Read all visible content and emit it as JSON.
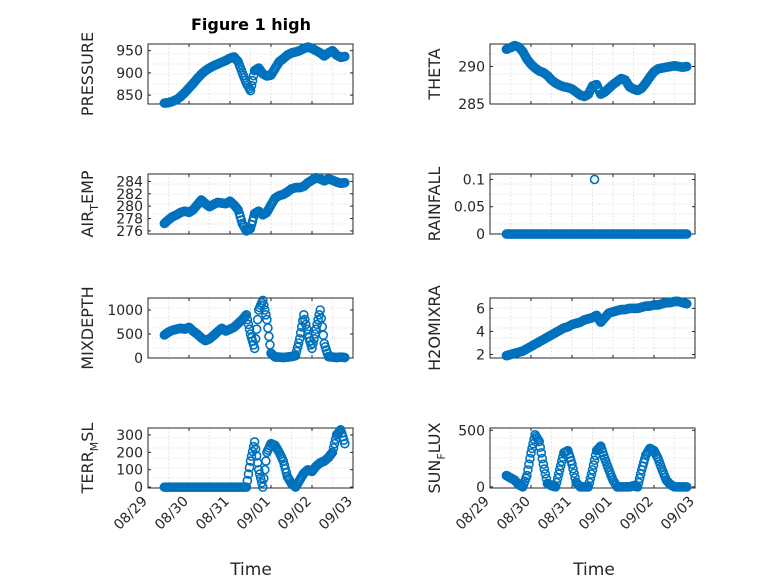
{
  "figure": {
    "title": "Figure 1 high"
  },
  "colors": {
    "marker": "#0072BD",
    "axis": "#262626",
    "grid": "#d9d9d9"
  },
  "x_ticks": [
    "08/29",
    "08/30",
    "08/31",
    "09/01",
    "09/02",
    "09/03"
  ],
  "x_label": "Time",
  "chart_data": [
    {
      "type": "scatter",
      "ylabel": "PRESSURE",
      "title": "Figure 1 high",
      "ylim": [
        830,
        965
      ],
      "yticks": [
        850,
        900,
        950
      ],
      "ytick_labels": [
        "850",
        "900",
        "950"
      ],
      "xlim": [
        0,
        5
      ],
      "xtick_labels": [
        "08/29",
        "08/30",
        "08/31",
        "09/01",
        "09/02",
        "09/03"
      ],
      "grid": true,
      "x": [
        0.4,
        0.5,
        0.6,
        0.7,
        0.8,
        0.9,
        1.0,
        1.1,
        1.2,
        1.3,
        1.4,
        1.5,
        1.6,
        1.7,
        1.8,
        1.9,
        2.0,
        2.1,
        2.2,
        2.3,
        2.4,
        2.5,
        2.6,
        2.7,
        2.8,
        2.9,
        3.0,
        3.1,
        3.2,
        3.3,
        3.4,
        3.5,
        3.6,
        3.7,
        3.8,
        3.9,
        4.0,
        4.1,
        4.2,
        4.3,
        4.4,
        4.5,
        4.6,
        4.7,
        4.8
      ],
      "y": [
        832,
        833,
        836,
        840,
        847,
        856,
        866,
        876,
        887,
        897,
        905,
        911,
        916,
        920,
        924,
        928,
        933,
        936,
        925,
        900,
        877,
        860,
        905,
        911,
        898,
        893,
        895,
        910,
        925,
        932,
        940,
        945,
        947,
        950,
        955,
        958,
        955,
        950,
        945,
        938,
        945,
        950,
        940,
        935,
        937
      ]
    },
    {
      "type": "scatter",
      "ylabel": "THETA",
      "ylim": [
        285,
        293
      ],
      "yticks": [
        285,
        290
      ],
      "ytick_labels": [
        "285",
        "290"
      ],
      "xlim": [
        0,
        5
      ],
      "xtick_labels": [
        "08/29",
        "08/30",
        "08/31",
        "09/01",
        "09/02",
        "09/03"
      ],
      "grid": true,
      "x": [
        0.4,
        0.5,
        0.6,
        0.7,
        0.8,
        0.9,
        1.0,
        1.1,
        1.2,
        1.3,
        1.4,
        1.5,
        1.6,
        1.7,
        1.8,
        1.9,
        2.0,
        2.1,
        2.2,
        2.3,
        2.4,
        2.5,
        2.6,
        2.7,
        2.8,
        2.9,
        3.0,
        3.1,
        3.2,
        3.3,
        3.4,
        3.5,
        3.6,
        3.7,
        3.8,
        3.9,
        4.0,
        4.1,
        4.2,
        4.3,
        4.4,
        4.5,
        4.6,
        4.7,
        4.8
      ],
      "y": [
        292.3,
        292.5,
        292.8,
        292.6,
        292.0,
        291.0,
        290.3,
        289.8,
        289.4,
        289.2,
        288.8,
        288.2,
        287.8,
        287.5,
        287.3,
        287.2,
        287.0,
        286.6,
        286.2,
        286.0,
        286.3,
        287.4,
        287.6,
        286.3,
        286.6,
        287.1,
        287.6,
        288.0,
        288.4,
        288.2,
        287.3,
        287.0,
        286.8,
        287.1,
        287.8,
        288.6,
        289.3,
        289.7,
        289.8,
        289.9,
        290.0,
        290.1,
        290.0,
        289.9,
        290.0
      ]
    },
    {
      "type": "scatter",
      "ylabel": "AIR_TEMP",
      "ylabel_main": "AIR",
      "ylabel_sub": "T",
      "ylabel_rest": "EMP",
      "ylim": [
        275.5,
        285.2
      ],
      "yticks": [
        276,
        278,
        280,
        282,
        284
      ],
      "ytick_labels": [
        "276",
        "278",
        "280",
        "282",
        "284"
      ],
      "xlim": [
        0,
        5
      ],
      "xtick_labels": [
        "08/29",
        "08/30",
        "08/31",
        "09/01",
        "09/02",
        "09/03"
      ],
      "grid": true,
      "x": [
        0.4,
        0.5,
        0.6,
        0.7,
        0.8,
        0.9,
        1.0,
        1.1,
        1.2,
        1.3,
        1.4,
        1.5,
        1.6,
        1.7,
        1.8,
        1.9,
        2.0,
        2.1,
        2.2,
        2.3,
        2.4,
        2.5,
        2.6,
        2.7,
        2.8,
        2.9,
        3.0,
        3.1,
        3.2,
        3.3,
        3.4,
        3.5,
        3.6,
        3.7,
        3.8,
        3.9,
        4.0,
        4.1,
        4.2,
        4.3,
        4.4,
        4.5,
        4.6,
        4.7,
        4.8
      ],
      "y": [
        277.2,
        277.8,
        278.3,
        278.6,
        279.0,
        279.2,
        279.0,
        279.4,
        280.2,
        281.0,
        280.4,
        279.9,
        280.3,
        280.6,
        280.5,
        280.4,
        280.8,
        280.2,
        279.4,
        277.2,
        276.0,
        276.4,
        278.8,
        279.2,
        278.6,
        279.0,
        280.2,
        281.3,
        281.7,
        281.9,
        282.3,
        282.8,
        283.0,
        283.0,
        283.2,
        283.8,
        284.2,
        284.6,
        284.4,
        284.1,
        284.4,
        284.2,
        283.9,
        283.7,
        283.8
      ]
    },
    {
      "type": "scatter",
      "ylabel": "RAINFALL",
      "ylim": [
        0,
        0.11
      ],
      "yticks": [
        0,
        0.05,
        0.1
      ],
      "ytick_labels": [
        "0",
        "0.05",
        "0.1"
      ],
      "xlim": [
        0,
        5
      ],
      "xtick_labels": [
        "08/29",
        "08/30",
        "08/31",
        "09/01",
        "09/02",
        "09/03"
      ],
      "grid": true,
      "x": [
        0.4,
        0.5,
        0.6,
        0.7,
        0.8,
        0.9,
        1.0,
        1.1,
        1.2,
        1.3,
        1.4,
        1.5,
        1.6,
        1.7,
        1.8,
        1.9,
        2.0,
        2.1,
        2.2,
        2.3,
        2.4,
        2.5,
        2.6,
        2.7,
        2.8,
        2.9,
        3.0,
        3.1,
        3.2,
        3.3,
        3.4,
        3.5,
        3.6,
        3.7,
        3.8,
        3.9,
        4.0,
        4.1,
        4.2,
        4.3,
        4.4,
        4.5,
        4.6,
        4.7,
        4.8,
        2.55
      ],
      "y": [
        0,
        0,
        0,
        0,
        0,
        0,
        0,
        0,
        0,
        0,
        0,
        0,
        0,
        0,
        0,
        0,
        0,
        0,
        0,
        0,
        0,
        0,
        0,
        0,
        0,
        0,
        0,
        0,
        0,
        0,
        0,
        0,
        0,
        0,
        0,
        0,
        0,
        0,
        0,
        0,
        0,
        0,
        0,
        0,
        0,
        0.1
      ]
    },
    {
      "type": "scatter",
      "ylabel": "MIXDEPTH",
      "ylim": [
        0,
        1250
      ],
      "yticks": [
        0,
        500,
        1000
      ],
      "ytick_labels": [
        "0",
        "500",
        "1000"
      ],
      "xlim": [
        0,
        5
      ],
      "xtick_labels": [
        "08/29",
        "08/30",
        "08/31",
        "09/01",
        "09/02",
        "09/03"
      ],
      "grid": true,
      "x": [
        0.4,
        0.5,
        0.6,
        0.7,
        0.8,
        0.9,
        1.0,
        1.1,
        1.2,
        1.3,
        1.4,
        1.5,
        1.6,
        1.7,
        1.8,
        1.9,
        2.0,
        2.1,
        2.2,
        2.3,
        2.4,
        2.5,
        2.6,
        2.7,
        2.8,
        2.9,
        3.0,
        3.1,
        3.2,
        3.3,
        3.4,
        3.5,
        3.6,
        3.7,
        3.8,
        3.9,
        4.0,
        4.1,
        4.2,
        4.3,
        4.4,
        4.5,
        4.6,
        4.7,
        4.8
      ],
      "y": [
        480,
        540,
        580,
        600,
        620,
        600,
        640,
        560,
        500,
        420,
        360,
        400,
        470,
        550,
        620,
        560,
        600,
        640,
        720,
        800,
        900,
        500,
        200,
        1000,
        1200,
        800,
        100,
        20,
        20,
        10,
        20,
        30,
        50,
        400,
        900,
        500,
        200,
        600,
        1000,
        300,
        30,
        20,
        10,
        20,
        10
      ]
    },
    {
      "type": "scatter",
      "ylabel": "H2OMIXRA",
      "ylim": [
        1.7,
        6.9
      ],
      "yticks": [
        2,
        4,
        6
      ],
      "ytick_labels": [
        "2",
        "4",
        "6"
      ],
      "xlim": [
        0,
        5
      ],
      "xtick_labels": [
        "08/29",
        "08/30",
        "08/31",
        "09/01",
        "09/02",
        "09/03"
      ],
      "grid": true,
      "x": [
        0.4,
        0.5,
        0.6,
        0.7,
        0.8,
        0.9,
        1.0,
        1.1,
        1.2,
        1.3,
        1.4,
        1.5,
        1.6,
        1.7,
        1.8,
        1.9,
        2.0,
        2.1,
        2.2,
        2.3,
        2.4,
        2.5,
        2.6,
        2.7,
        2.8,
        2.9,
        3.0,
        3.1,
        3.2,
        3.3,
        3.4,
        3.5,
        3.6,
        3.7,
        3.8,
        3.9,
        4.0,
        4.1,
        4.2,
        4.3,
        4.4,
        4.5,
        4.6,
        4.7,
        4.8
      ],
      "y": [
        1.9,
        2.0,
        2.1,
        2.2,
        2.3,
        2.5,
        2.7,
        2.9,
        3.1,
        3.3,
        3.5,
        3.7,
        3.9,
        4.1,
        4.3,
        4.4,
        4.6,
        4.7,
        4.8,
        5.0,
        5.1,
        5.2,
        5.4,
        4.8,
        5.2,
        5.6,
        5.7,
        5.8,
        5.9,
        5.9,
        6.0,
        6.0,
        6.0,
        6.1,
        6.2,
        6.2,
        6.3,
        6.3,
        6.4,
        6.5,
        6.5,
        6.6,
        6.6,
        6.5,
        6.4
      ]
    },
    {
      "type": "scatter",
      "ylabel": "TERR_MSL",
      "ylabel_main": "TERR",
      "ylabel_sub": "M",
      "ylabel_rest": "SL",
      "ylim": [
        -5,
        340
      ],
      "yticks": [
        0,
        100,
        200,
        300
      ],
      "ytick_labels": [
        "0",
        "100",
        "200",
        "300"
      ],
      "xlim": [
        0,
        5
      ],
      "xtick_labels": [
        "08/29",
        "08/30",
        "08/31",
        "09/01",
        "09/02",
        "09/03"
      ],
      "grid": true,
      "x": [
        0.4,
        0.5,
        0.6,
        0.7,
        0.8,
        0.9,
        1.0,
        1.1,
        1.2,
        1.3,
        1.4,
        1.5,
        1.6,
        1.7,
        1.8,
        1.9,
        2.0,
        2.1,
        2.2,
        2.3,
        2.4,
        2.5,
        2.6,
        2.7,
        2.8,
        2.9,
        3.0,
        3.1,
        3.2,
        3.3,
        3.4,
        3.5,
        3.6,
        3.7,
        3.8,
        3.9,
        4.0,
        4.1,
        4.2,
        4.3,
        4.4,
        4.5,
        4.6,
        4.7,
        4.8
      ],
      "y": [
        0,
        0,
        0,
        0,
        0,
        0,
        0,
        0,
        0,
        0,
        0,
        0,
        0,
        0,
        0,
        0,
        0,
        0,
        0,
        0,
        0,
        150,
        260,
        100,
        0,
        200,
        250,
        240,
        200,
        150,
        60,
        20,
        0,
        40,
        80,
        100,
        90,
        120,
        140,
        150,
        170,
        200,
        300,
        330,
        250
      ]
    },
    {
      "type": "scatter",
      "ylabel": "SUN_FLUX",
      "ylabel_main": "SUN",
      "ylabel_sub": "F",
      "ylabel_rest": "LUX",
      "ylim": [
        -10,
        520
      ],
      "yticks": [
        0,
        500
      ],
      "ytick_labels": [
        "0",
        "500"
      ],
      "xlim": [
        0,
        5
      ],
      "xtick_labels": [
        "08/29",
        "08/30",
        "08/31",
        "09/01",
        "09/02",
        "09/03"
      ],
      "grid": true,
      "x": [
        0.4,
        0.5,
        0.6,
        0.7,
        0.8,
        0.9,
        1.0,
        1.1,
        1.2,
        1.3,
        1.4,
        1.5,
        1.6,
        1.7,
        1.8,
        1.9,
        2.0,
        2.1,
        2.2,
        2.3,
        2.4,
        2.5,
        2.6,
        2.7,
        2.8,
        2.9,
        3.0,
        3.1,
        3.2,
        3.3,
        3.4,
        3.5,
        3.6,
        3.7,
        3.8,
        3.9,
        4.0,
        4.1,
        4.2,
        4.3,
        4.4,
        4.5,
        4.6,
        4.7,
        4.8
      ],
      "y": [
        100,
        80,
        60,
        20,
        0,
        100,
        300,
        460,
        400,
        200,
        30,
        10,
        0,
        150,
        300,
        320,
        200,
        40,
        0,
        0,
        0,
        150,
        320,
        360,
        250,
        150,
        60,
        0,
        0,
        0,
        0,
        10,
        0,
        150,
        280,
        340,
        320,
        250,
        150,
        60,
        20,
        0,
        0,
        0,
        0
      ]
    }
  ]
}
